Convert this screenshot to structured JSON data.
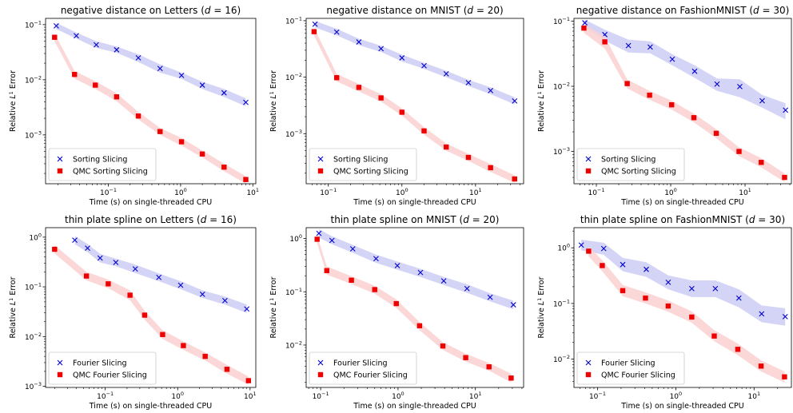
{
  "chart_data": [
    {
      "type": "line",
      "title": "negative distance on Letters (d = 16)",
      "title_parts": {
        "prefix": "negative distance on Letters (",
        "var": "d",
        "suffix": " = 16)"
      },
      "xlabel": "Time (s) on single-threaded CPU",
      "ylabel_parts": {
        "prefix": "Relative ",
        "L": "L",
        "sup": "1",
        "suffix": " Error"
      },
      "xscale": "log",
      "yscale": "log",
      "xlim": [
        0.0135,
        11
      ],
      "ylim": [
        0.00013,
        0.13
      ],
      "xticks": [
        {
          "v": 0.1,
          "label": "10",
          "exp": "−1"
        },
        {
          "v": 1,
          "label": "10",
          "exp": "0"
        },
        {
          "v": 10,
          "label": "10",
          "exp": "1"
        }
      ],
      "yticks": [
        {
          "v": 0.001,
          "label": "10",
          "exp": "−3"
        },
        {
          "v": 0.01,
          "label": "10",
          "exp": "−2"
        },
        {
          "v": 0.1,
          "label": "10",
          "exp": "−1"
        }
      ],
      "legend": "lower-left",
      "series": [
        {
          "name": "Sorting Slicing",
          "marker": "x",
          "color": "#0000cc",
          "band": "#ccccf6",
          "x": [
            0.019,
            0.036,
            0.068,
            0.13,
            0.26,
            0.52,
            1.03,
            2.0,
            4.0,
            8.0
          ],
          "y": [
            0.095,
            0.063,
            0.043,
            0.035,
            0.025,
            0.016,
            0.012,
            0.008,
            0.0058,
            0.0039
          ],
          "lo": [
            0.083,
            0.056,
            0.038,
            0.031,
            0.021,
            0.0135,
            0.0104,
            0.0068,
            0.0049,
            0.0033
          ],
          "hi": [
            0.108,
            0.072,
            0.05,
            0.04,
            0.029,
            0.019,
            0.0135,
            0.0092,
            0.0068,
            0.0046
          ]
        },
        {
          "name": "QMC Sorting Slicing",
          "marker": "square",
          "color": "#ee0000",
          "band": "#fbd0d0",
          "x": [
            0.018,
            0.034,
            0.066,
            0.13,
            0.26,
            0.52,
            1.03,
            2.0,
            4.0,
            8.0
          ],
          "y": [
            0.059,
            0.0125,
            0.008,
            0.0049,
            0.0022,
            0.00115,
            0.00075,
            0.00045,
            0.00026,
            0.000155
          ],
          "lo": [
            0.05,
            0.0105,
            0.0068,
            0.0041,
            0.0019,
            0.001,
            0.00064,
            0.00039,
            0.00022,
            0.00013
          ],
          "hi": [
            0.069,
            0.0145,
            0.0094,
            0.0057,
            0.0026,
            0.00133,
            0.00088,
            0.00052,
            0.0003,
            0.000178
          ]
        }
      ]
    },
    {
      "type": "line",
      "title": "negative distance on MNIST (d = 20)",
      "title_parts": {
        "prefix": "negative distance on MNIST (",
        "var": "d",
        "suffix": " = 20)"
      },
      "xlabel": "Time (s) on single-threaded CPU",
      "ylabel_parts": {
        "prefix": "Relative ",
        "L": "L",
        "sup": "1",
        "suffix": " Error"
      },
      "xscale": "log",
      "yscale": "log",
      "xlim": [
        0.05,
        45
      ],
      "ylim": [
        0.00013,
        0.11
      ],
      "xticks": [
        {
          "v": 0.1,
          "label": "10",
          "exp": "−1"
        },
        {
          "v": 1,
          "label": "10",
          "exp": "0"
        },
        {
          "v": 10,
          "label": "10",
          "exp": "1"
        }
      ],
      "yticks": [
        {
          "v": 0.001,
          "label": "10",
          "exp": "−3"
        },
        {
          "v": 0.01,
          "label": "10",
          "exp": "−2"
        },
        {
          "v": 0.1,
          "label": "10",
          "exp": "−1"
        }
      ],
      "legend": "lower-left",
      "series": [
        {
          "name": "Sorting Slicing",
          "marker": "x",
          "color": "#0000cc",
          "band": "#ccccf6",
          "x": [
            0.066,
            0.13,
            0.26,
            0.52,
            1.0,
            2.0,
            4.0,
            8.0,
            16.0,
            34.0
          ],
          "y": [
            0.087,
            0.063,
            0.042,
            0.032,
            0.022,
            0.016,
            0.0115,
            0.008,
            0.0058,
            0.0038
          ],
          "lo": [
            0.076,
            0.055,
            0.037,
            0.028,
            0.019,
            0.014,
            0.01,
            0.007,
            0.005,
            0.0033
          ],
          "hi": [
            0.099,
            0.072,
            0.048,
            0.036,
            0.025,
            0.018,
            0.013,
            0.009,
            0.0066,
            0.0044
          ]
        },
        {
          "name": "QMC Sorting Slicing",
          "marker": "square",
          "color": "#ee0000",
          "band": "#fbd0d0",
          "x": [
            0.064,
            0.13,
            0.26,
            0.52,
            1.0,
            2.0,
            4.0,
            8.0,
            16.0,
            34.0
          ],
          "y": [
            0.064,
            0.0098,
            0.0066,
            0.0043,
            0.0024,
            0.00112,
            0.00058,
            0.00038,
            0.00025,
            0.000158
          ],
          "lo": [
            0.054,
            0.0084,
            0.0056,
            0.0037,
            0.0021,
            0.00096,
            0.0005,
            0.00033,
            0.00021,
            0.000135
          ],
          "hi": [
            0.075,
            0.0114,
            0.0076,
            0.005,
            0.0028,
            0.0013,
            0.00067,
            0.00044,
            0.00029,
            0.000183
          ]
        }
      ]
    },
    {
      "type": "line",
      "title": "negative distance on FashionMNIST (d = 30)",
      "title_parts": {
        "prefix": "negative distance on FashionMNIST (",
        "var": "d",
        "suffix": " = 30)"
      },
      "xlabel": "Time (s) on single-threaded CPU",
      "ylabel_parts": {
        "prefix": "Relative ",
        "L": "L",
        "sup": "1",
        "suffix": " Error"
      },
      "xscale": "log",
      "yscale": "log",
      "xlim": [
        0.05,
        42
      ],
      "ylim": [
        0.00032,
        0.11
      ],
      "xticks": [
        {
          "v": 0.1,
          "label": "10",
          "exp": "−1"
        },
        {
          "v": 1,
          "label": "10",
          "exp": "0"
        },
        {
          "v": 10,
          "label": "10",
          "exp": "1"
        }
      ],
      "yticks": [
        {
          "v": 0.001,
          "label": "10",
          "exp": "−3"
        },
        {
          "v": 0.01,
          "label": "10",
          "exp": "−2"
        },
        {
          "v": 0.1,
          "label": "10",
          "exp": "−1"
        }
      ],
      "legend": "lower-left",
      "series": [
        {
          "name": "Sorting Slicing",
          "marker": "x",
          "color": "#0000cc",
          "band": "#ccccf6",
          "x": [
            0.07,
            0.13,
            0.27,
            0.53,
            1.05,
            2.1,
            4.2,
            8.5,
            17.0,
            35.0
          ],
          "y": [
            0.094,
            0.062,
            0.042,
            0.04,
            0.026,
            0.017,
            0.0108,
            0.0099,
            0.006,
            0.0043
          ],
          "lo": [
            0.082,
            0.05,
            0.033,
            0.032,
            0.021,
            0.0135,
            0.0085,
            0.0068,
            0.0047,
            0.0031
          ],
          "hi": [
            0.105,
            0.074,
            0.052,
            0.049,
            0.031,
            0.021,
            0.0132,
            0.0128,
            0.0074,
            0.0055
          ]
        },
        {
          "name": "QMC Sorting Slicing",
          "marker": "square",
          "color": "#ee0000",
          "band": "#fbd0d0",
          "x": [
            0.068,
            0.13,
            0.26,
            0.52,
            1.03,
            2.05,
            4.1,
            8.3,
            16.5,
            34.0
          ],
          "y": [
            0.078,
            0.048,
            0.011,
            0.0073,
            0.0052,
            0.0033,
            0.0019,
            0.001,
            0.00068,
            0.0004
          ],
          "lo": [
            0.066,
            0.038,
            0.0093,
            0.0062,
            0.0044,
            0.0028,
            0.0016,
            0.00085,
            0.00057,
            0.00034
          ],
          "hi": [
            0.09,
            0.058,
            0.0127,
            0.0085,
            0.006,
            0.0038,
            0.0022,
            0.00116,
            0.00079,
            0.00046
          ]
        }
      ]
    },
    {
      "type": "line",
      "title": "thin plate spline on Letters (d = 16)",
      "title_parts": {
        "prefix": "thin plate spline on Letters (",
        "var": "d",
        "suffix": " = 16)"
      },
      "xlabel": "Time (s) on single-threaded CPU",
      "ylabel_parts": {
        "prefix": "Relative ",
        "L": "L",
        "sup": "1",
        "suffix": " Error"
      },
      "xscale": "log",
      "yscale": "log",
      "xlim": [
        0.015,
        12
      ],
      "ylim": [
        0.00095,
        1.55
      ],
      "xticks": [
        {
          "v": 0.1,
          "label": "10",
          "exp": "−1"
        },
        {
          "v": 1,
          "label": "10",
          "exp": "0"
        },
        {
          "v": 10,
          "label": "10",
          "exp": "1"
        }
      ],
      "yticks": [
        {
          "v": 0.001,
          "label": "10",
          "exp": "−3"
        },
        {
          "v": 0.01,
          "label": "10",
          "exp": "−2"
        },
        {
          "v": 0.1,
          "label": "10",
          "exp": "−1"
        },
        {
          "v": 1,
          "label": "10",
          "exp": "0"
        }
      ],
      "legend": "lower-left",
      "series": [
        {
          "name": "Fourier Slicing",
          "marker": "x",
          "color": "#0000cc",
          "band": "#ccccf6",
          "x": [
            0.038,
            0.057,
            0.085,
            0.14,
            0.26,
            0.55,
            1.1,
            2.2,
            4.5,
            9.0
          ],
          "y": [
            0.87,
            0.6,
            0.38,
            0.31,
            0.23,
            0.155,
            0.108,
            0.071,
            0.053,
            0.036
          ],
          "lo": [
            0.72,
            0.5,
            0.31,
            0.26,
            0.19,
            0.13,
            0.09,
            0.06,
            0.044,
            0.03
          ],
          "hi": [
            1.05,
            0.73,
            0.46,
            0.37,
            0.28,
            0.187,
            0.13,
            0.085,
            0.064,
            0.044
          ]
        },
        {
          "name": "QMC Fourier Slicing",
          "marker": "square",
          "color": "#ee0000",
          "band": "#fbd0d0",
          "x": [
            0.02,
            0.055,
            0.11,
            0.22,
            0.35,
            0.62,
            1.2,
            2.4,
            4.8,
            9.5
          ],
          "y": [
            0.57,
            0.165,
            0.115,
            0.068,
            0.027,
            0.011,
            0.0066,
            0.004,
            0.0022,
            0.0013
          ],
          "lo": [
            0.47,
            0.135,
            0.094,
            0.054,
            0.022,
            0.009,
            0.0054,
            0.0033,
            0.0018,
            0.00108
          ],
          "hi": [
            0.69,
            0.2,
            0.14,
            0.085,
            0.033,
            0.0134,
            0.008,
            0.0048,
            0.0027,
            0.00157
          ]
        }
      ]
    },
    {
      "type": "line",
      "title": "thin plate spline on MNIST (d = 20)",
      "title_parts": {
        "prefix": "thin plate spline on MNIST (",
        "var": "d",
        "suffix": " = 20)"
      },
      "xlabel": "Time (s) on single-threaded CPU",
      "ylabel_parts": {
        "prefix": "Relative ",
        "L": "L",
        "sup": "1",
        "suffix": " Error"
      },
      "xscale": "log",
      "yscale": "log",
      "xlim": [
        0.065,
        42
      ],
      "ylim": [
        0.0016,
        1.6
      ],
      "xticks": [
        {
          "v": 0.1,
          "label": "10",
          "exp": "−1"
        },
        {
          "v": 1,
          "label": "10",
          "exp": "0"
        },
        {
          "v": 10,
          "label": "10",
          "exp": "1"
        }
      ],
      "yticks": [
        {
          "v": 0.01,
          "label": "10",
          "exp": "−2"
        },
        {
          "v": 0.1,
          "label": "10",
          "exp": "−1"
        },
        {
          "v": 1,
          "label": "10",
          "exp": "0"
        }
      ],
      "legend": "lower-left",
      "series": [
        {
          "name": "Fourier Slicing",
          "marker": "x",
          "color": "#0000cc",
          "band": "#ccccf6",
          "x": [
            0.095,
            0.14,
            0.26,
            0.52,
            0.98,
            1.95,
            3.9,
            7.8,
            15.5,
            31.0
          ],
          "y": [
            1.25,
            0.92,
            0.64,
            0.42,
            0.31,
            0.23,
            0.16,
            0.115,
            0.079,
            0.057
          ],
          "lo": [
            1.04,
            0.78,
            0.54,
            0.35,
            0.26,
            0.19,
            0.134,
            0.096,
            0.066,
            0.047
          ],
          "hi": [
            1.5,
            1.1,
            0.76,
            0.5,
            0.37,
            0.27,
            0.19,
            0.138,
            0.094,
            0.068
          ]
        },
        {
          "name": "QMC Fourier Slicing",
          "marker": "square",
          "color": "#ee0000",
          "band": "#fbd0d0",
          "x": [
            0.09,
            0.12,
            0.25,
            0.5,
            0.95,
            1.9,
            3.8,
            7.5,
            15.0,
            29.0
          ],
          "y": [
            0.97,
            0.25,
            0.165,
            0.11,
            0.06,
            0.023,
            0.0096,
            0.0058,
            0.0039,
            0.0024
          ],
          "lo": [
            0.82,
            0.21,
            0.14,
            0.092,
            0.05,
            0.019,
            0.0081,
            0.0049,
            0.0033,
            0.002
          ],
          "hi": [
            1.15,
            0.3,
            0.195,
            0.13,
            0.072,
            0.027,
            0.0113,
            0.0069,
            0.0046,
            0.0029
          ]
        }
      ]
    },
    {
      "type": "line",
      "title": "thin plate spline on FashionMNIST (d = 30)",
      "title_parts": {
        "prefix": "thin plate spline on FashionMNIST (",
        "var": "d",
        "suffix": " = 30)"
      },
      "xlabel": "Time (s) on single-threaded CPU",
      "ylabel_parts": {
        "prefix": "Relative ",
        "L": "L",
        "sup": "1",
        "suffix": " Error"
      },
      "xscale": "log",
      "yscale": "log",
      "xlim": [
        0.05,
        30
      ],
      "ylim": [
        0.0031,
        2.3
      ],
      "xticks": [
        {
          "v": 0.1,
          "label": "10",
          "exp": "−1"
        },
        {
          "v": 1,
          "label": "10",
          "exp": "0"
        },
        {
          "v": 10,
          "label": "10",
          "exp": "1"
        }
      ],
      "yticks": [
        {
          "v": 0.01,
          "label": "10",
          "exp": "−2"
        },
        {
          "v": 0.1,
          "label": "10",
          "exp": "−1"
        },
        {
          "v": 1,
          "label": "10",
          "exp": "0"
        }
      ],
      "legend": "lower-left",
      "series": [
        {
          "name": "Fourier Slicing",
          "marker": "x",
          "color": "#0000cc",
          "band": "#ccccf6",
          "x": [
            0.062,
            0.12,
            0.21,
            0.42,
            0.8,
            1.6,
            3.2,
            6.4,
            12.5,
            25.0
          ],
          "y": [
            1.12,
            0.97,
            0.5,
            0.41,
            0.24,
            0.185,
            0.185,
            0.125,
            0.065,
            0.058
          ],
          "lo": [
            0.9,
            0.75,
            0.38,
            0.3,
            0.18,
            0.13,
            0.13,
            0.085,
            0.046,
            0.04
          ],
          "hi": [
            1.4,
            1.23,
            0.66,
            0.55,
            0.32,
            0.26,
            0.26,
            0.18,
            0.092,
            0.082
          ]
        },
        {
          "name": "QMC Fourier Slicing",
          "marker": "square",
          "color": "#ee0000",
          "band": "#fbd0d0",
          "x": [
            0.077,
            0.115,
            0.21,
            0.41,
            0.8,
            1.6,
            3.1,
            6.2,
            12.3,
            24.5
          ],
          "y": [
            0.87,
            0.48,
            0.17,
            0.125,
            0.09,
            0.057,
            0.026,
            0.015,
            0.0075,
            0.0048
          ],
          "lo": [
            0.7,
            0.38,
            0.135,
            0.1,
            0.071,
            0.045,
            0.021,
            0.0118,
            0.006,
            0.0038
          ],
          "hi": [
            1.06,
            0.6,
            0.215,
            0.158,
            0.113,
            0.072,
            0.033,
            0.019,
            0.0095,
            0.006
          ]
        }
      ]
    }
  ]
}
